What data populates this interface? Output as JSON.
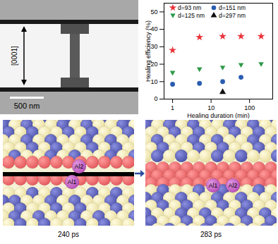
{
  "chart_data": {
    "type": "scatter",
    "x_label": "Healing duration (min)",
    "y_label": "Healing efficiency (%)",
    "log": "x",
    "xlim": [
      0.6,
      400
    ],
    "xticks": [
      1,
      10,
      100
    ],
    "ylim": [
      0,
      55
    ],
    "yticks": [
      0,
      10,
      20,
      30,
      40,
      50
    ],
    "grid": false,
    "legend": "top",
    "series": [
      {
        "name": "d=93 nm",
        "color": "#e8343a",
        "marker": "star",
        "x": [
          1,
          5,
          20,
          60,
          200
        ],
        "values": [
          28,
          35.5,
          36,
          36,
          36
        ]
      },
      {
        "name": "d=151 nm",
        "color": "#2a5db0",
        "marker": "circle",
        "x": [
          1,
          5,
          20,
          60
        ],
        "values": [
          8.5,
          9,
          10,
          12.5
        ]
      },
      {
        "name": "d=125 nm",
        "color": "#2e9a4a",
        "marker": "triangle-down",
        "x": [
          1,
          5,
          20,
          60,
          200
        ],
        "values": [
          15,
          17,
          18,
          19.5,
          20
        ]
      },
      {
        "name": "d=297 nm",
        "color": "#111111",
        "marker": "triangle-up",
        "x": [
          20
        ],
        "values": [
          4
        ]
      }
    ]
  },
  "micrograph": {
    "direction": "[0001]",
    "scale_bar": "500 nm"
  },
  "snapshots": [
    {
      "time": "240 ps",
      "atoms": [
        "Al2",
        "Al1"
      ]
    },
    {
      "time": "283 ps",
      "atoms": [
        "Al1",
        "Al2"
      ]
    }
  ]
}
